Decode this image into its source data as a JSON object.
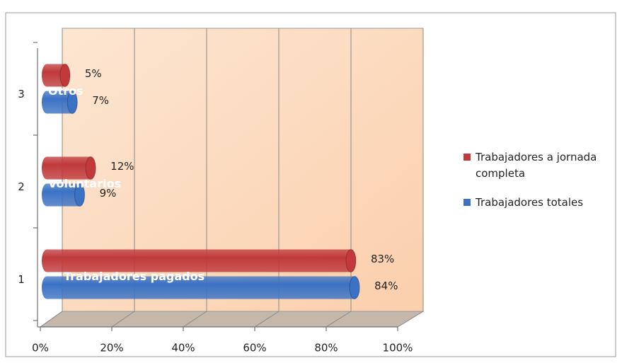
{
  "chart_data": {
    "type": "bar3d",
    "orientation": "horizontal",
    "categories": [
      "1",
      "2",
      "3"
    ],
    "annotations": [
      "Trabajadores pagados",
      "Voluntarios",
      "Otros"
    ],
    "series": [
      {
        "name": "Trabajadores a jornada completa",
        "color": "#c0393b",
        "values": [
          83,
          12,
          5
        ],
        "value_labels": [
          "83%",
          "12%",
          "5%"
        ]
      },
      {
        "name": "Trabajadores totales",
        "color": "#3b72c4",
        "values": [
          84,
          9,
          7
        ],
        "value_labels": [
          "84%",
          "9%",
          "7%"
        ]
      }
    ],
    "xlim": [
      0,
      100
    ],
    "xticks": [
      {
        "value": 0,
        "label": "0%"
      },
      {
        "value": 20,
        "label": "20%"
      },
      {
        "value": 40,
        "label": "40%"
      },
      {
        "value": 60,
        "label": "60%"
      },
      {
        "value": 80,
        "label": "80%"
      },
      {
        "value": 100,
        "label": "100%"
      }
    ],
    "grid": true,
    "legend": "right"
  }
}
